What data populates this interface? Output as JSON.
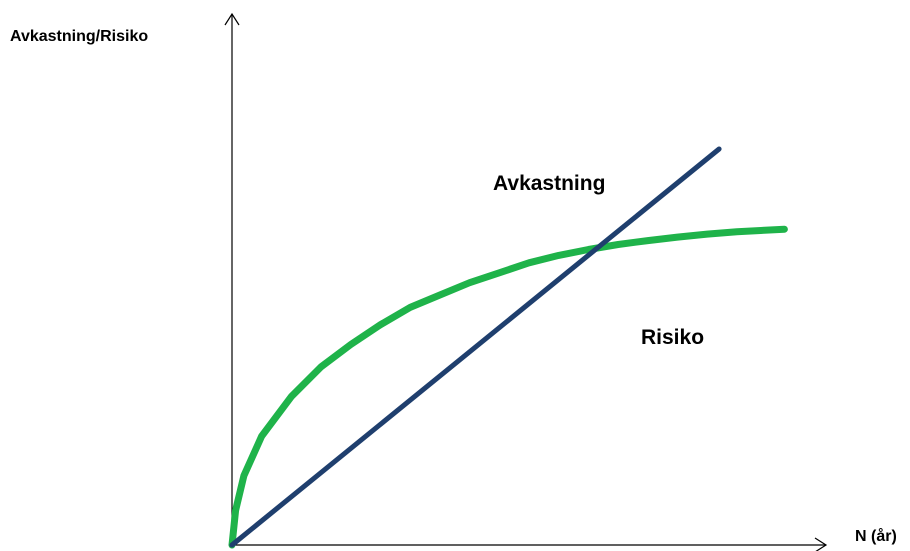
{
  "chart_data": {
    "type": "line",
    "ylabel": "Avkastning/Risiko",
    "xlabel": "N (år)",
    "xlim": [
      0,
      10
    ],
    "ylim": [
      0,
      10
    ],
    "grid": false,
    "legend": "inline",
    "colors": {
      "axis": "#000000",
      "avkastning": "#1f3f6e",
      "risiko": "#1fb34a"
    },
    "series": [
      {
        "name": "Avkastning",
        "color": "#1f3f6e",
        "x": [
          0,
          8.2
        ],
        "y": [
          0,
          8.0
        ]
      },
      {
        "name": "Risiko",
        "color": "#1fb34a",
        "x": [
          0,
          0.06,
          0.2,
          0.5,
          1,
          1.5,
          2,
          2.5,
          3,
          3.5,
          4,
          4.5,
          5,
          5.5,
          6,
          6.5,
          7,
          7.5,
          8,
          8.5,
          9.3
        ],
        "y": [
          0,
          0.7,
          1.4,
          2.2,
          3.0,
          3.6,
          4.05,
          4.45,
          4.8,
          5.05,
          5.3,
          5.5,
          5.7,
          5.85,
          5.97,
          6.07,
          6.15,
          6.22,
          6.28,
          6.33,
          6.38
        ]
      }
    ]
  }
}
